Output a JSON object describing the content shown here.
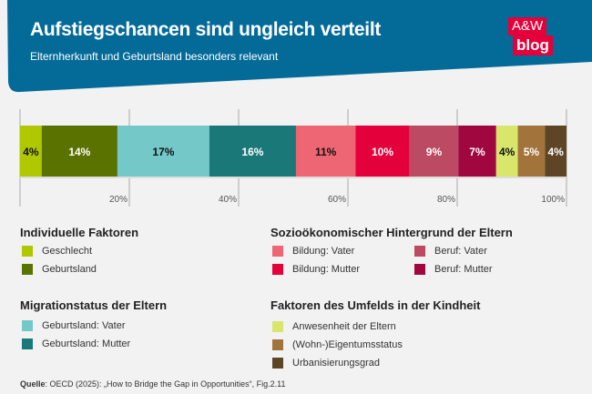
{
  "header": {
    "title": "Aufstiegschancen sind ungleich verteilt",
    "subtitle": "Elternherkunft und Geburtsland besonders relevant",
    "logo_line1": "A&W",
    "logo_line2": "blog",
    "color": "#046b99",
    "logo_color": "#e4003a"
  },
  "chart_data": {
    "type": "bar",
    "orientation": "horizontal-stacked",
    "categories": [
      "Geschlecht",
      "Geburtsland",
      "Geburtsland: Vater",
      "Geburtsland: Mutter",
      "Bildung: Vater",
      "Bildung: Mutter",
      "Beruf: Vater",
      "Beruf: Mutter",
      "Anwesenheit der Eltern",
      "(Wohn-)Eigentumsstatus",
      "Urbanisierungsgrad"
    ],
    "values": [
      4,
      14,
      17,
      16,
      11,
      10,
      9,
      7,
      4,
      5,
      4
    ],
    "labels": [
      "4%",
      "14%",
      "17%",
      "16%",
      "11%",
      "10%",
      "9%",
      "7%",
      "4%",
      "5%",
      "4%"
    ],
    "colors": [
      "#b0c800",
      "#5a7200",
      "#74c8c8",
      "#1b7878",
      "#ee6673",
      "#e4003a",
      "#bc4a62",
      "#a0073e",
      "#d8e66c",
      "#a2733a",
      "#5e4526"
    ],
    "label_colors": [
      "#111",
      "#fff",
      "#111",
      "#fff",
      "#111",
      "#fff",
      "#fff",
      "#fff",
      "#111",
      "#fff",
      "#fff"
    ],
    "xticks": [
      "20%",
      "40%",
      "60%",
      "80%",
      "100%"
    ],
    "xlim": [
      0,
      100
    ],
    "grid": true
  },
  "legend": {
    "groups": [
      {
        "title": "Individuelle Faktoren",
        "items": [
          "Geschlecht",
          "Geburtsland"
        ]
      },
      {
        "title": "Sozioökonomischer Hintergrund der Eltern",
        "items": [
          "Bildung: Vater",
          "Bildung: Mutter",
          "Beruf: Vater",
          "Beruf: Mutter"
        ]
      },
      {
        "title": "Migrationstatus der Eltern",
        "items": [
          "Geburtsland: Vater",
          "Geburtsland: Mutter"
        ]
      },
      {
        "title": "Faktoren des Umfelds in der Kindheit",
        "items": [
          "Anwesenheit der Eltern",
          "(Wohn-)Eigentumsstatus",
          "Urbanisierungsgrad"
        ]
      }
    ]
  },
  "source": {
    "label": "Quelle",
    "text": ": OECD (2025): „How to Bridge the Gap in Opportunities“, Fig.2.11"
  }
}
